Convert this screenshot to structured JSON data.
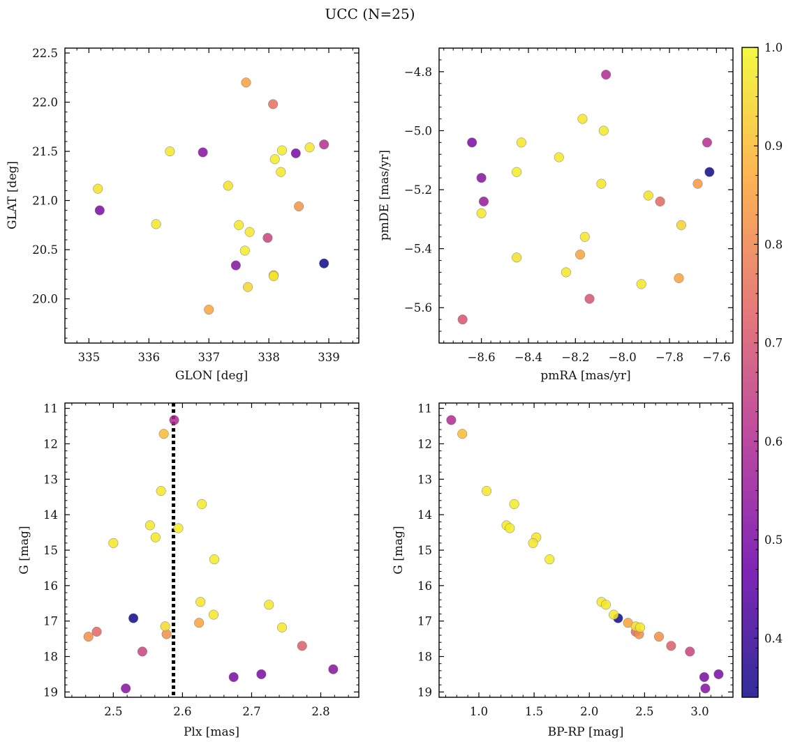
{
  "figure_title": "UCC (N=25)",
  "colorbar": {
    "vmin": 0.34,
    "vmax": 1.0,
    "ticks": [
      "0.4",
      "0.5",
      "0.6",
      "0.7",
      "0.8",
      "0.9",
      "1.0"
    ],
    "colormap": "plasma",
    "colors": [
      "#0d0887",
      "#6a00a8",
      "#b12a90",
      "#e16462",
      "#fca636",
      "#f0f921"
    ]
  },
  "chart_data": [
    {
      "type": "scatter",
      "title": "",
      "xlabel": "GLON [deg]",
      "ylabel": "GLAT [deg]",
      "xlim": [
        334.6,
        339.5
      ],
      "ylim": [
        19.55,
        22.55
      ],
      "xticks": [
        "335",
        "336",
        "337",
        "338",
        "339"
      ],
      "yticks": [
        "20.0",
        "20.5",
        "21.0",
        "21.5",
        "22.0",
        "22.5"
      ],
      "points": [
        {
          "x": 337.62,
          "y": 22.2,
          "c": 0.85
        },
        {
          "x": 338.07,
          "y": 21.98,
          "c": 0.76
        },
        {
          "x": 336.9,
          "y": 21.49,
          "c": 0.52
        },
        {
          "x": 336.35,
          "y": 21.5,
          "c": 0.97
        },
        {
          "x": 335.15,
          "y": 21.12,
          "c": 0.96
        },
        {
          "x": 335.18,
          "y": 20.9,
          "c": 0.5
        },
        {
          "x": 336.12,
          "y": 20.76,
          "c": 0.97
        },
        {
          "x": 337.32,
          "y": 21.15,
          "c": 0.96
        },
        {
          "x": 338.22,
          "y": 21.51,
          "c": 0.98
        },
        {
          "x": 338.1,
          "y": 21.42,
          "c": 0.98
        },
        {
          "x": 338.45,
          "y": 21.48,
          "c": 0.5
        },
        {
          "x": 338.68,
          "y": 21.54,
          "c": 0.97
        },
        {
          "x": 338.92,
          "y": 21.57,
          "c": 0.61
        },
        {
          "x": 338.2,
          "y": 21.29,
          "c": 0.97
        },
        {
          "x": 338.5,
          "y": 20.94,
          "c": 0.83
        },
        {
          "x": 337.5,
          "y": 20.75,
          "c": 0.97
        },
        {
          "x": 337.68,
          "y": 20.68,
          "c": 0.97
        },
        {
          "x": 337.98,
          "y": 20.62,
          "c": 0.66
        },
        {
          "x": 337.6,
          "y": 20.49,
          "c": 0.98
        },
        {
          "x": 337.45,
          "y": 20.34,
          "c": 0.52
        },
        {
          "x": 338.08,
          "y": 20.24,
          "c": 0.93
        },
        {
          "x": 338.08,
          "y": 20.23,
          "c": 0.97
        },
        {
          "x": 338.92,
          "y": 20.36,
          "c": 0.34
        },
        {
          "x": 337.65,
          "y": 20.12,
          "c": 0.94
        },
        {
          "x": 337.0,
          "y": 19.89,
          "c": 0.86
        }
      ]
    },
    {
      "type": "scatter",
      "title": "",
      "xlabel": "pmRA [mas/yr]",
      "ylabel": "pmDE [mas/yr]",
      "xlim": [
        -8.78,
        -7.53
      ],
      "ylim": [
        -5.72,
        -4.72
      ],
      "xticks": [
        "−8.6",
        "−8.4",
        "−8.2",
        "−8.0",
        "−7.8",
        "−7.6"
      ],
      "xtick_values": [
        -8.6,
        -8.4,
        -8.2,
        -8.0,
        -7.8,
        -7.6
      ],
      "yticks": [
        "−5.6",
        "−5.4",
        "−5.2",
        "−5.0",
        "−4.8"
      ],
      "ytick_values": [
        -5.6,
        -5.4,
        -5.2,
        -5.0,
        -4.8
      ],
      "points": [
        {
          "x": -8.07,
          "y": -4.81,
          "c": 0.6
        },
        {
          "x": -8.17,
          "y": -4.96,
          "c": 0.97
        },
        {
          "x": -8.08,
          "y": -5.0,
          "c": 0.97
        },
        {
          "x": -8.64,
          "y": -5.04,
          "c": 0.5
        },
        {
          "x": -8.43,
          "y": -5.04,
          "c": 0.97
        },
        {
          "x": -7.64,
          "y": -5.04,
          "c": 0.61
        },
        {
          "x": -8.27,
          "y": -5.09,
          "c": 0.97
        },
        {
          "x": -8.45,
          "y": -5.14,
          "c": 0.98
        },
        {
          "x": -7.63,
          "y": -5.14,
          "c": 0.34
        },
        {
          "x": -8.6,
          "y": -5.16,
          "c": 0.52
        },
        {
          "x": -8.09,
          "y": -5.18,
          "c": 0.97
        },
        {
          "x": -7.68,
          "y": -5.18,
          "c": 0.84
        },
        {
          "x": -7.89,
          "y": -5.22,
          "c": 0.96
        },
        {
          "x": -8.59,
          "y": -5.24,
          "c": 0.55
        },
        {
          "x": -7.84,
          "y": -5.24,
          "c": 0.74
        },
        {
          "x": -8.6,
          "y": -5.28,
          "c": 0.97
        },
        {
          "x": -7.75,
          "y": -5.32,
          "c": 0.94
        },
        {
          "x": -8.16,
          "y": -5.36,
          "c": 0.97
        },
        {
          "x": -8.18,
          "y": -5.42,
          "c": 0.86
        },
        {
          "x": -8.45,
          "y": -5.43,
          "c": 0.96
        },
        {
          "x": -8.24,
          "y": -5.48,
          "c": 0.97
        },
        {
          "x": -7.76,
          "y": -5.5,
          "c": 0.86
        },
        {
          "x": -7.92,
          "y": -5.52,
          "c": 0.97
        },
        {
          "x": -8.14,
          "y": -5.57,
          "c": 0.7
        },
        {
          "x": -8.68,
          "y": -5.64,
          "c": 0.7
        }
      ]
    },
    {
      "type": "scatter",
      "title": "",
      "xlabel": "Plx [mas]",
      "ylabel": "G [mag]",
      "xlim": [
        2.43,
        2.855
      ],
      "ylim": [
        19.15,
        10.85
      ],
      "y_inverted": true,
      "xticks": [
        "2.5",
        "2.6",
        "2.7",
        "2.8"
      ],
      "yticks": [
        "11",
        "12",
        "13",
        "14",
        "15",
        "16",
        "17",
        "18",
        "19"
      ],
      "vline": {
        "x": 2.587,
        "style": "dotted",
        "color": "#000000"
      },
      "points": [
        {
          "x": 2.588,
          "y": 11.33,
          "c": 0.6
        },
        {
          "x": 2.573,
          "y": 11.72,
          "c": 0.9
        },
        {
          "x": 2.569,
          "y": 13.33,
          "c": 0.97
        },
        {
          "x": 2.628,
          "y": 13.7,
          "c": 0.98
        },
        {
          "x": 2.553,
          "y": 14.3,
          "c": 0.97
        },
        {
          "x": 2.594,
          "y": 14.38,
          "c": 0.98
        },
        {
          "x": 2.561,
          "y": 14.64,
          "c": 0.97
        },
        {
          "x": 2.5,
          "y": 14.8,
          "c": 0.97
        },
        {
          "x": 2.646,
          "y": 15.26,
          "c": 0.98
        },
        {
          "x": 2.626,
          "y": 16.46,
          "c": 0.97
        },
        {
          "x": 2.725,
          "y": 16.54,
          "c": 0.97
        },
        {
          "x": 2.645,
          "y": 16.82,
          "c": 0.97
        },
        {
          "x": 2.529,
          "y": 16.92,
          "c": 0.34
        },
        {
          "x": 2.624,
          "y": 17.05,
          "c": 0.86
        },
        {
          "x": 2.575,
          "y": 17.15,
          "c": 0.95
        },
        {
          "x": 2.744,
          "y": 17.18,
          "c": 0.97
        },
        {
          "x": 2.476,
          "y": 17.3,
          "c": 0.74
        },
        {
          "x": 2.577,
          "y": 17.37,
          "c": 0.82
        },
        {
          "x": 2.464,
          "y": 17.44,
          "c": 0.82
        },
        {
          "x": 2.773,
          "y": 17.7,
          "c": 0.72
        },
        {
          "x": 2.542,
          "y": 17.86,
          "c": 0.66
        },
        {
          "x": 2.818,
          "y": 18.36,
          "c": 0.52
        },
        {
          "x": 2.714,
          "y": 18.5,
          "c": 0.5
        },
        {
          "x": 2.674,
          "y": 18.58,
          "c": 0.5
        },
        {
          "x": 2.518,
          "y": 18.9,
          "c": 0.52
        }
      ]
    },
    {
      "type": "scatter",
      "title": "",
      "xlabel": "BP-RP [mag]",
      "ylabel": "G [mag]",
      "xlim": [
        0.64,
        3.3
      ],
      "ylim": [
        19.15,
        10.85
      ],
      "y_inverted": true,
      "xticks": [
        "1.0",
        "1.5",
        "2.0",
        "2.5",
        "3.0"
      ],
      "yticks": [
        "11",
        "12",
        "13",
        "14",
        "15",
        "16",
        "17",
        "18",
        "19"
      ],
      "points": [
        {
          "x": 0.75,
          "y": 11.33,
          "c": 0.6
        },
        {
          "x": 0.85,
          "y": 11.72,
          "c": 0.9
        },
        {
          "x": 1.07,
          "y": 13.33,
          "c": 0.97
        },
        {
          "x": 1.32,
          "y": 13.7,
          "c": 0.98
        },
        {
          "x": 1.25,
          "y": 14.3,
          "c": 0.97
        },
        {
          "x": 1.28,
          "y": 14.38,
          "c": 0.98
        },
        {
          "x": 1.52,
          "y": 14.64,
          "c": 0.97
        },
        {
          "x": 1.49,
          "y": 14.8,
          "c": 0.97
        },
        {
          "x": 1.64,
          "y": 15.26,
          "c": 0.98
        },
        {
          "x": 2.11,
          "y": 16.46,
          "c": 0.97
        },
        {
          "x": 2.15,
          "y": 16.54,
          "c": 0.97
        },
        {
          "x": 2.22,
          "y": 16.82,
          "c": 0.97
        },
        {
          "x": 2.26,
          "y": 16.92,
          "c": 0.34
        },
        {
          "x": 2.35,
          "y": 17.05,
          "c": 0.86
        },
        {
          "x": 2.42,
          "y": 17.15,
          "c": 0.95
        },
        {
          "x": 2.46,
          "y": 17.18,
          "c": 0.97
        },
        {
          "x": 2.42,
          "y": 17.3,
          "c": 0.74
        },
        {
          "x": 2.45,
          "y": 17.37,
          "c": 0.82
        },
        {
          "x": 2.63,
          "y": 17.44,
          "c": 0.82
        },
        {
          "x": 2.74,
          "y": 17.7,
          "c": 0.72
        },
        {
          "x": 2.91,
          "y": 17.86,
          "c": 0.66
        },
        {
          "x": 3.17,
          "y": 18.5,
          "c": 0.5
        },
        {
          "x": 3.04,
          "y": 18.58,
          "c": 0.5
        },
        {
          "x": 3.05,
          "y": 18.9,
          "c": 0.52
        }
      ]
    }
  ]
}
